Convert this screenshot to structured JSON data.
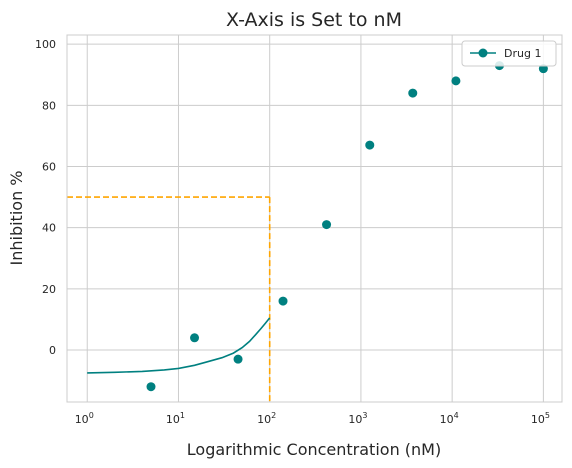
{
  "chart_data": {
    "type": "scatter",
    "title": "X-Axis is Set to nM",
    "xlabel": "Logarithmic Concentration (nM)",
    "ylabel": "Inhibition %",
    "xscale": "log",
    "xlim": [
      0.6,
      160000
    ],
    "ylim": [
      -17,
      103
    ],
    "x_ticks": [
      {
        "value": 1,
        "label": "10",
        "exp": "0"
      },
      {
        "value": 10,
        "label": "10",
        "exp": "1"
      },
      {
        "value": 100,
        "label": "10",
        "exp": "2"
      },
      {
        "value": 1000,
        "label": "10",
        "exp": "3"
      },
      {
        "value": 10000,
        "label": "10",
        "exp": "4"
      },
      {
        "value": 100000,
        "label": "10",
        "exp": "5"
      }
    ],
    "y_ticks": [
      0,
      20,
      40,
      60,
      80,
      100
    ],
    "grid": true,
    "legend_position": "top-right",
    "colors": {
      "series": "#008080",
      "reference": "#FFA500",
      "grid": "#cccccc"
    },
    "series": [
      {
        "name": "Drug 1",
        "points": [
          {
            "x": 5,
            "y": -12
          },
          {
            "x": 15,
            "y": 4
          },
          {
            "x": 45,
            "y": -3
          },
          {
            "x": 140,
            "y": 16
          },
          {
            "x": 420,
            "y": 41
          },
          {
            "x": 1250,
            "y": 67
          },
          {
            "x": 3700,
            "y": 84
          },
          {
            "x": 11000,
            "y": 88
          },
          {
            "x": 33000,
            "y": 93
          },
          {
            "x": 100000,
            "y": 92
          }
        ],
        "fit_curve": [
          {
            "x": 1,
            "y": -7.5
          },
          {
            "x": 2,
            "y": -7.3
          },
          {
            "x": 4,
            "y": -7.0
          },
          {
            "x": 7,
            "y": -6.5
          },
          {
            "x": 10,
            "y": -6.0
          },
          {
            "x": 15,
            "y": -5.0
          },
          {
            "x": 20,
            "y": -4.0
          },
          {
            "x": 30,
            "y": -2.5
          },
          {
            "x": 40,
            "y": -1.0
          },
          {
            "x": 50,
            "y": 0.8
          },
          {
            "x": 60,
            "y": 2.8
          },
          {
            "x": 70,
            "y": 5.0
          },
          {
            "x": 80,
            "y": 7.0
          },
          {
            "x": 90,
            "y": 8.8
          },
          {
            "x": 100,
            "y": 10.5
          }
        ]
      }
    ],
    "reference_lines": {
      "x": 100,
      "y": 50
    }
  }
}
